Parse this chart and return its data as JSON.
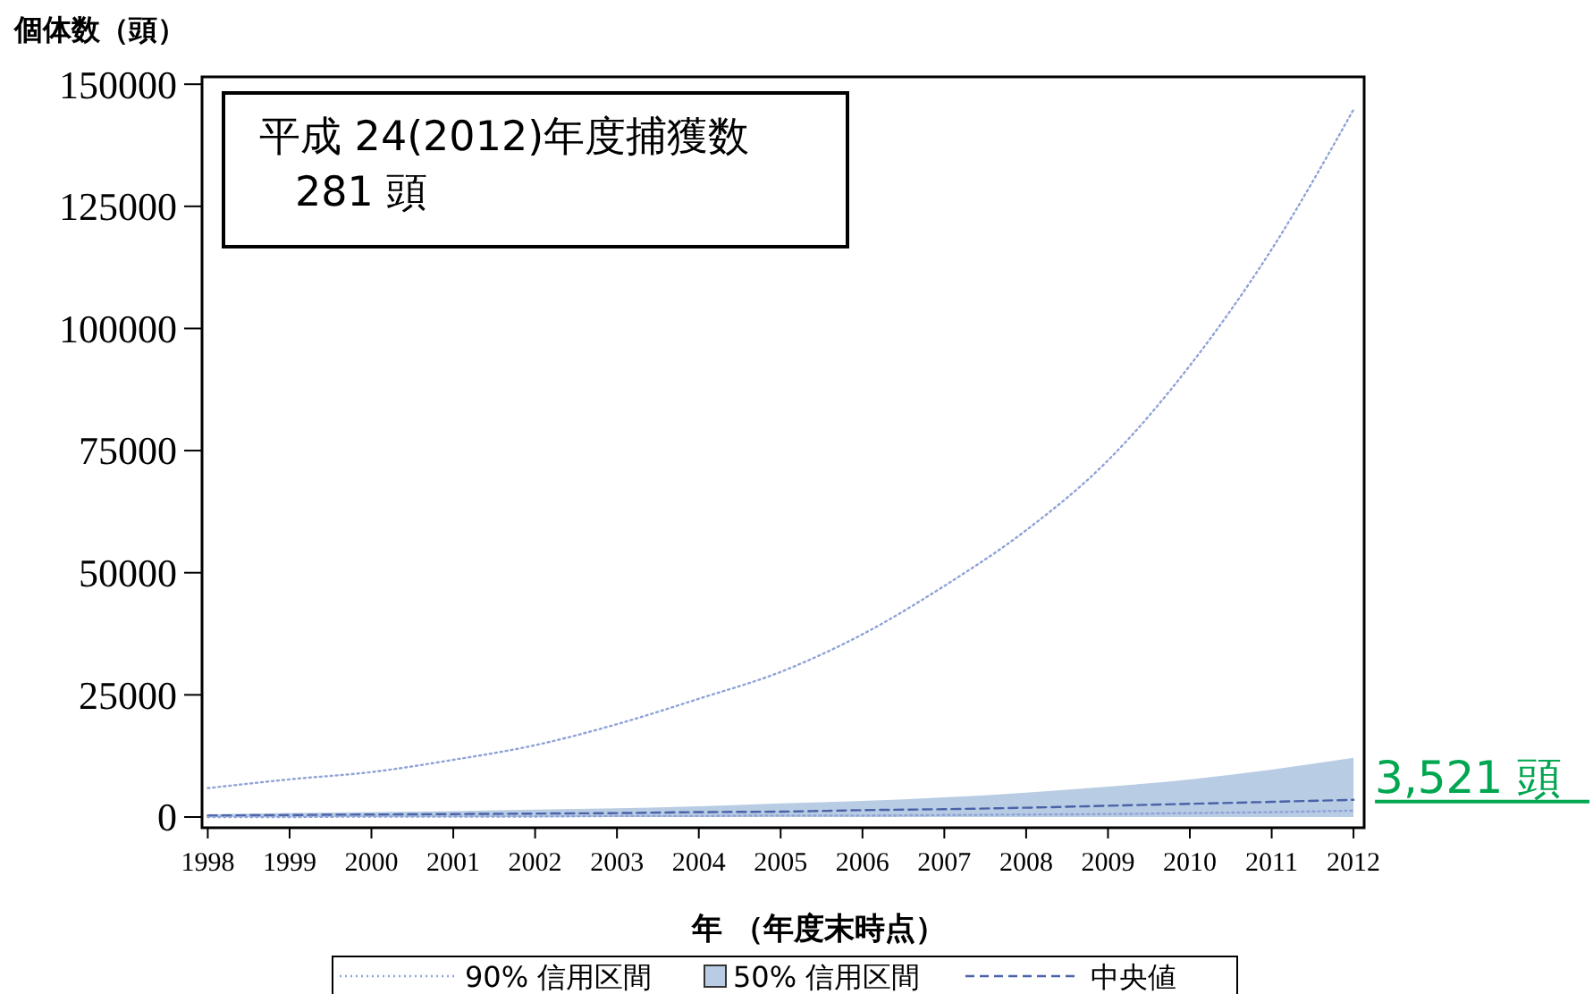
{
  "chart_data": {
    "type": "line",
    "xlabel": "年 （年度末時点）",
    "ylabel": "個体数（頭）",
    "x": [
      1998,
      1999,
      2000,
      2001,
      2002,
      2003,
      2004,
      2005,
      2006,
      2007,
      2008,
      2009,
      2010,
      2011,
      2012
    ],
    "xlim": [
      1997.93,
      2012.13
    ],
    "ylim": [
      -2200,
      151500
    ],
    "xticks": [
      1998,
      1999,
      2000,
      2001,
      2002,
      2003,
      2004,
      2005,
      2006,
      2007,
      2008,
      2009,
      2010,
      2011,
      2012
    ],
    "yticks": [
      0,
      25000,
      50000,
      75000,
      100000,
      125000,
      150000
    ],
    "series": [
      {
        "name": "90% 信用区間",
        "line_style": "dotted",
        "color": "#8fa3d6",
        "values": [
          5900,
          7700,
          9200,
          11700,
          14700,
          19000,
          24200,
          29700,
          37400,
          47300,
          58700,
          73000,
          92400,
          116200,
          144800
        ]
      },
      {
        "type": "area",
        "color": "#b8cce4",
        "values": [
          600,
          800,
          1000,
          1200,
          1500,
          1800,
          2200,
          2800,
          3300,
          4000,
          5000,
          6200,
          7700,
          9700,
          12100
        ],
        "name": "50% 信用区間"
      },
      {
        "name": "中央値",
        "line_style": "dashed",
        "color": "#4a62a8",
        "values": [
          300,
          400,
          500,
          600,
          700,
          800,
          1000,
          1100,
          1400,
          1600,
          1900,
          2300,
          2700,
          3100,
          3521
        ]
      },
      {
        "line_style": "dotted",
        "color": "#8fa3d6",
        "values": [
          0,
          0,
          100,
          100,
          100,
          200,
          200,
          300,
          300,
          400,
          500,
          600,
          800,
          1000,
          1300
        ]
      }
    ],
    "legend": "bottom",
    "annotations": [
      "平成 24(2012)年度捕獲数\n281 頭",
      {
        "text": "3,521 頭",
        "x": 2012,
        "y": 3521
      }
    ]
  }
}
